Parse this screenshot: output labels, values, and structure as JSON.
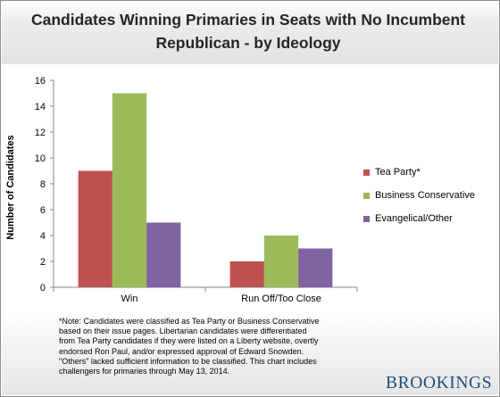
{
  "title_lines": [
    "Candidates Winning Primaries in Seats with No Incumbent",
    "Republican - by Ideology"
  ],
  "note_lines": [
    "*Note:  Candidates were classified as Tea Party or Business Conservative",
    "based on their issue pages. Libertarian candidates were differentiated",
    "from Tea Party candidates if they were listed on a Liberty website, overtly",
    "endorsed Ron Paul, and/or expressed approval of Edward Snowden.",
    "\"Others\" lacked sufficient information to be classified.  This chart includes",
    "challengers for primaries through May 13, 2014."
  ],
  "logo": "BROOKINGS",
  "chart_data": {
    "type": "bar",
    "title": "Candidates Winning Primaries in Seats with No Incumbent Republican - by Ideology",
    "xlabel": "",
    "ylabel": "Number of Candidates",
    "categories": [
      "Win",
      "Run Off/Too Close"
    ],
    "series": [
      {
        "name": "Tea Party*",
        "color": "#c0504d",
        "values": [
          9,
          2
        ]
      },
      {
        "name": "Business Conservative",
        "color": "#9bbb59",
        "values": [
          15,
          4
        ]
      },
      {
        "name": "Evangelical/Other",
        "color": "#8064a2",
        "values": [
          5,
          3
        ]
      }
    ],
    "ylim": [
      0,
      16
    ],
    "yticks": [
      0,
      2,
      4,
      6,
      8,
      10,
      12,
      14,
      16
    ],
    "grid": false,
    "legend_position": "right"
  }
}
